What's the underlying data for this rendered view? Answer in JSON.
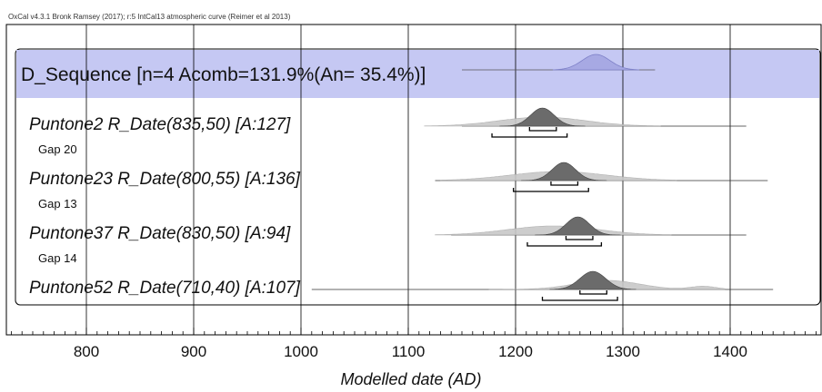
{
  "header": {
    "credit": "OxCal v4.3.1 Bronk Ramsey (2017); r:5 IntCal13 atmospheric curve (Reimer et al 2013)"
  },
  "chart_data": {
    "type": "area",
    "title": "",
    "xlabel": "Modelled date (AD)",
    "xlim": [
      727,
      900
    ],
    "xlim_note": "",
    "xticks": [
      800,
      900,
      1000,
      1100,
      1200,
      1300,
      1400
    ],
    "xlim_full": [
      727,
      1490
    ],
    "grid": true,
    "sequence": {
      "label": "D_Sequence [n=4 Acomb=131.9%(An= 35.4%)]",
      "range": [
        1150,
        1330
      ],
      "peak": 1275,
      "width": 13,
      "band_color": "#c5c8f3"
    },
    "dates": [
      {
        "label": "Puntone2 R_Date(835,50) [A:127]",
        "line_range": [
          1150,
          1415
        ],
        "prior_peak": 1225,
        "prior_width": 40,
        "posterior_peak": 1225,
        "posterior_width": 11,
        "range_68": [
          1213,
          1238
        ],
        "range_95": [
          1178,
          1248
        ]
      },
      {
        "label": "Puntone23 R_Date(800,55) [A:136]",
        "line_range": [
          1125,
          1435
        ],
        "prior_peak": 1240,
        "prior_width": 45,
        "posterior_peak": 1245,
        "posterior_width": 11,
        "range_68": [
          1233,
          1258
        ],
        "range_95": [
          1198,
          1268
        ]
      },
      {
        "label": "Puntone37 R_Date(830,50) [A:94]",
        "line_range": [
          1140,
          1415
        ],
        "prior_peak": 1235,
        "prior_width": 42,
        "posterior_peak": 1258,
        "posterior_width": 11,
        "range_68": [
          1247,
          1272
        ],
        "range_95": [
          1211,
          1280
        ]
      },
      {
        "label": "Puntone52 R_Date(710,40) [A:107]",
        "line_range": [
          1010,
          1440
        ],
        "prior_peak": 1285,
        "prior_width": 30,
        "secondary_peak": 1375,
        "posterior_peak": 1272,
        "posterior_width": 12,
        "range_68": [
          1260,
          1285
        ],
        "range_95": [
          1225,
          1295
        ]
      }
    ],
    "gaps": [
      "Gap 20",
      "Gap 13",
      "Gap 14"
    ],
    "colors": {
      "posterior": "#6b6b6b",
      "prior": "#c8c8c8",
      "sequence_curve": "#a7a9e3",
      "grid": "#000000"
    }
  }
}
